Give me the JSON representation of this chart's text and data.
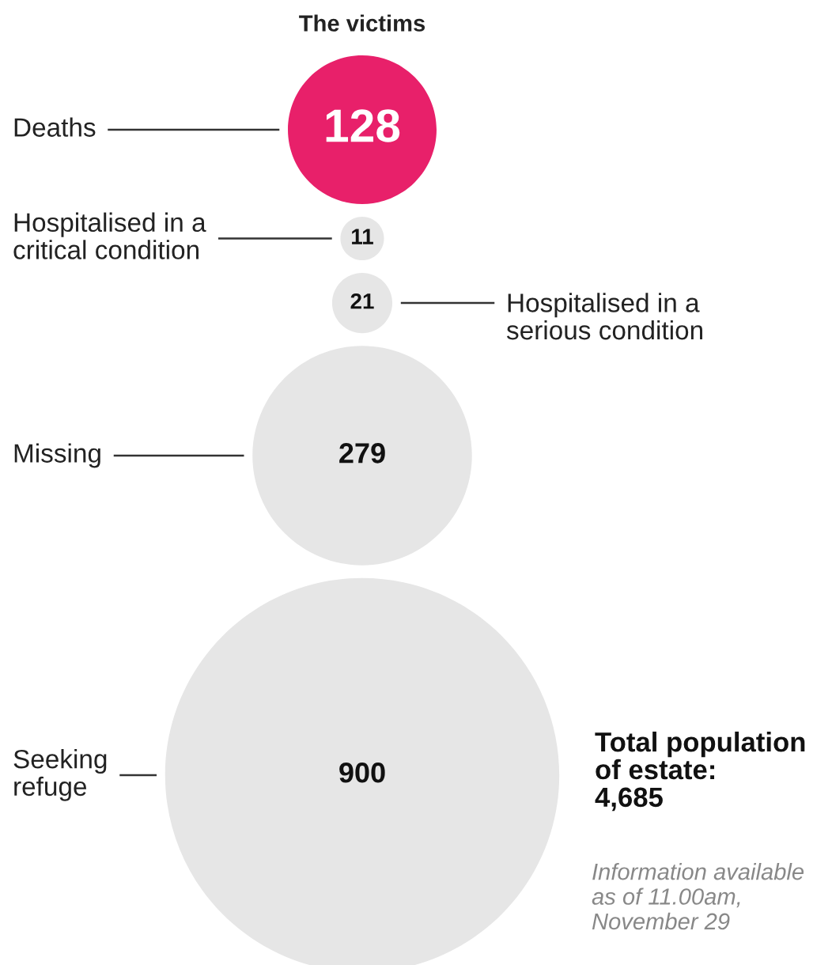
{
  "chart_data": {
    "type": "other",
    "title": "The victims",
    "categories": [
      "Deaths",
      "Hospitalised in a\ncritical condition",
      "Hospitalised in a\nserious condition",
      "Missing",
      "Seeking\nrefuge"
    ],
    "values": [
      128,
      11,
      21,
      279,
      900
    ],
    "colors": [
      "#e8206a",
      "#e6e6e6",
      "#e6e6e6",
      "#e6e6e6",
      "#e6e6e6"
    ],
    "data_labels": true,
    "annotations": [
      "Total population\nof estate:\n4,685",
      "Information available\nas of 11.00am,\nNovember 29"
    ]
  }
}
